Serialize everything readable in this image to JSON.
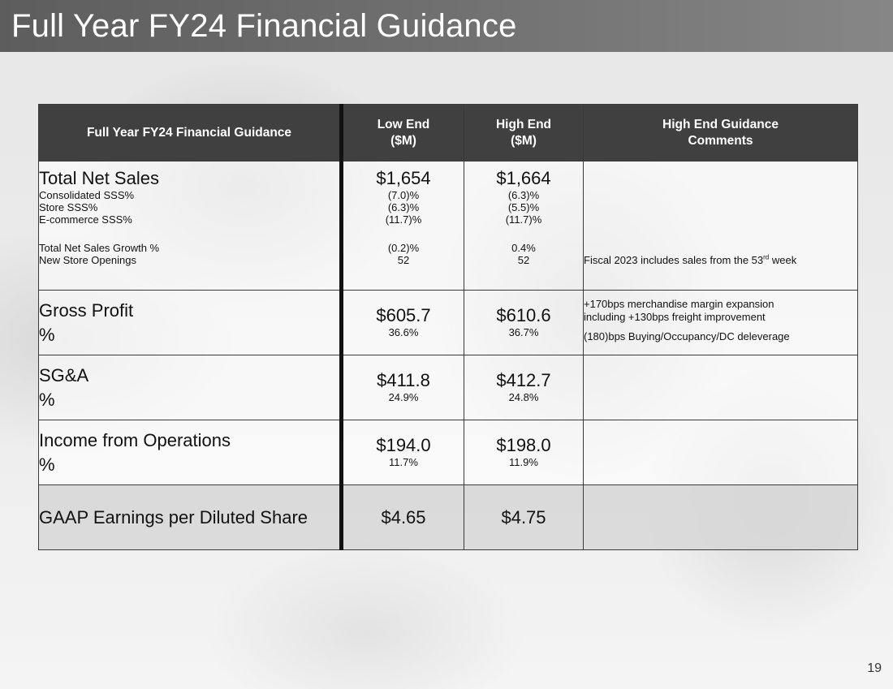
{
  "slide": {
    "title": "Full Year FY24 Financial Guidance",
    "page_number": "19"
  },
  "table": {
    "headers": {
      "metric": "Full Year FY24 Financial Guidance",
      "low_line1": "Low End",
      "low_line2": "($M)",
      "high_line1": "High End",
      "high_line2": "($M)",
      "comments_line1": "High End Guidance",
      "comments_line2": "Comments"
    },
    "net_sales": {
      "label": "Total Net Sales",
      "low": "$1,654",
      "high": "$1,664",
      "sub": [
        {
          "label": "Consolidated SSS%",
          "low": "(7.0)%",
          "high": "(6.3)%"
        },
        {
          "label": "Store SSS%",
          "low": "(6.3)%",
          "high": "(5.5)%"
        },
        {
          "label": "E-commerce SSS%",
          "low": "(11.7)%",
          "high": "(11.7)%"
        }
      ],
      "growth": {
        "label": "Total Net Sales Growth %",
        "low": "(0.2)%",
        "high": "0.4%"
      },
      "stores": {
        "label": "New Store Openings",
        "low": "52",
        "high": "52"
      },
      "comment_pre": "Fiscal 2023 includes sales from the 53",
      "comment_sup": "rd",
      "comment_post": " week"
    },
    "gross_profit": {
      "label": "Gross Profit",
      "pct_label": "%",
      "low": "$605.7",
      "low_pct": "36.6%",
      "high": "$610.6",
      "high_pct": "36.7%",
      "comment1": "+170bps merchandise margin expansion",
      "comment2": "including +130bps freight improvement",
      "comment3": "(180)bps Buying/Occupancy/DC deleverage"
    },
    "sga": {
      "label": "SG&A",
      "pct_label": "%",
      "low": "$411.8",
      "low_pct": "24.9%",
      "high": "$412.7",
      "high_pct": "24.8%"
    },
    "income_ops": {
      "label": "Income from Operations",
      "pct_label": "%",
      "low": "$194.0",
      "low_pct": "11.7%",
      "high": "$198.0",
      "high_pct": "11.9%"
    },
    "eps": {
      "label": "GAAP Earnings per Diluted Share",
      "low": "$4.65",
      "high": "$4.75"
    }
  }
}
